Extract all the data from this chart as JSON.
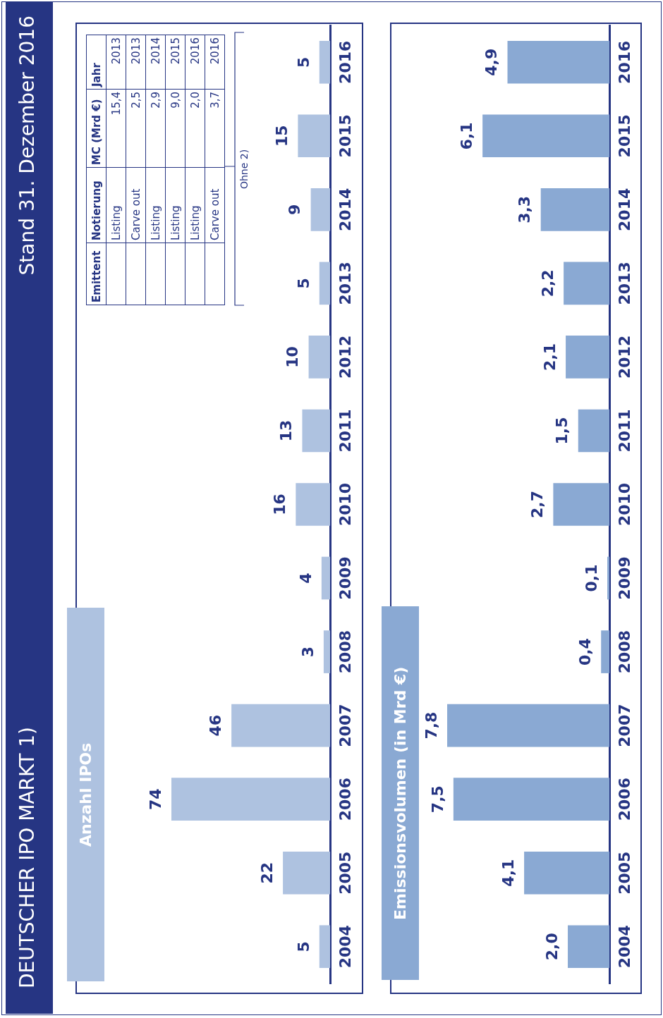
{
  "chart_data": [
    {
      "type": "other",
      "title": "DEUTSCHER IPO MARKT 1)",
      "subtitle": "Stand 31. Dezember 2016"
    },
    {
      "type": "bar",
      "orientation": "horizontal",
      "title": "Anzahl IPOs",
      "categories": [
        "2016",
        "2015",
        "2014",
        "2013",
        "2012",
        "2011",
        "2010",
        "2009",
        "2008",
        "2007",
        "2006",
        "2005",
        "2004"
      ],
      "values": [
        5,
        15,
        9,
        5,
        10,
        13,
        16,
        4,
        3,
        46,
        74,
        22,
        5
      ],
      "value_labels": [
        "5",
        "15",
        "9",
        "5",
        "10",
        "13",
        "16",
        "4",
        "3",
        "46",
        "74",
        "22",
        "5"
      ],
      "color": "#aec2e0",
      "annotations": [
        "Emittent",
        "Notierung",
        "MC (Mrd €)",
        "Jahr",
        "Listing",
        "15,4",
        "2013",
        "Carve out",
        "2,5",
        "2013",
        "Listing",
        "2,9",
        "2014",
        "Listing",
        "9,0",
        "2015",
        "Listing",
        "2,0",
        "2016",
        "Carve out",
        "3,7",
        "2016",
        "Ohne 2)"
      ]
    },
    {
      "type": "bar",
      "orientation": "horizontal",
      "title": "Emissionsvolumen (in Mrd €)",
      "categories": [
        "2016",
        "2015",
        "2014",
        "2013",
        "2012",
        "2011",
        "2010",
        "2009",
        "2008",
        "2007",
        "2006",
        "2005",
        "2004"
      ],
      "values": [
        4.9,
        6.1,
        3.3,
        2.2,
        2.1,
        1.5,
        2.7,
        0.1,
        0.4,
        7.8,
        7.5,
        4.1,
        2.0
      ],
      "value_labels": [
        "4,9",
        "6,1",
        "3,3",
        "2,2",
        "2,1",
        "1,5",
        "2,7",
        "0,1",
        "0,4",
        "7,8",
        "7,5",
        "4,1",
        "2,0"
      ],
      "color": "#8aa9d3"
    }
  ]
}
